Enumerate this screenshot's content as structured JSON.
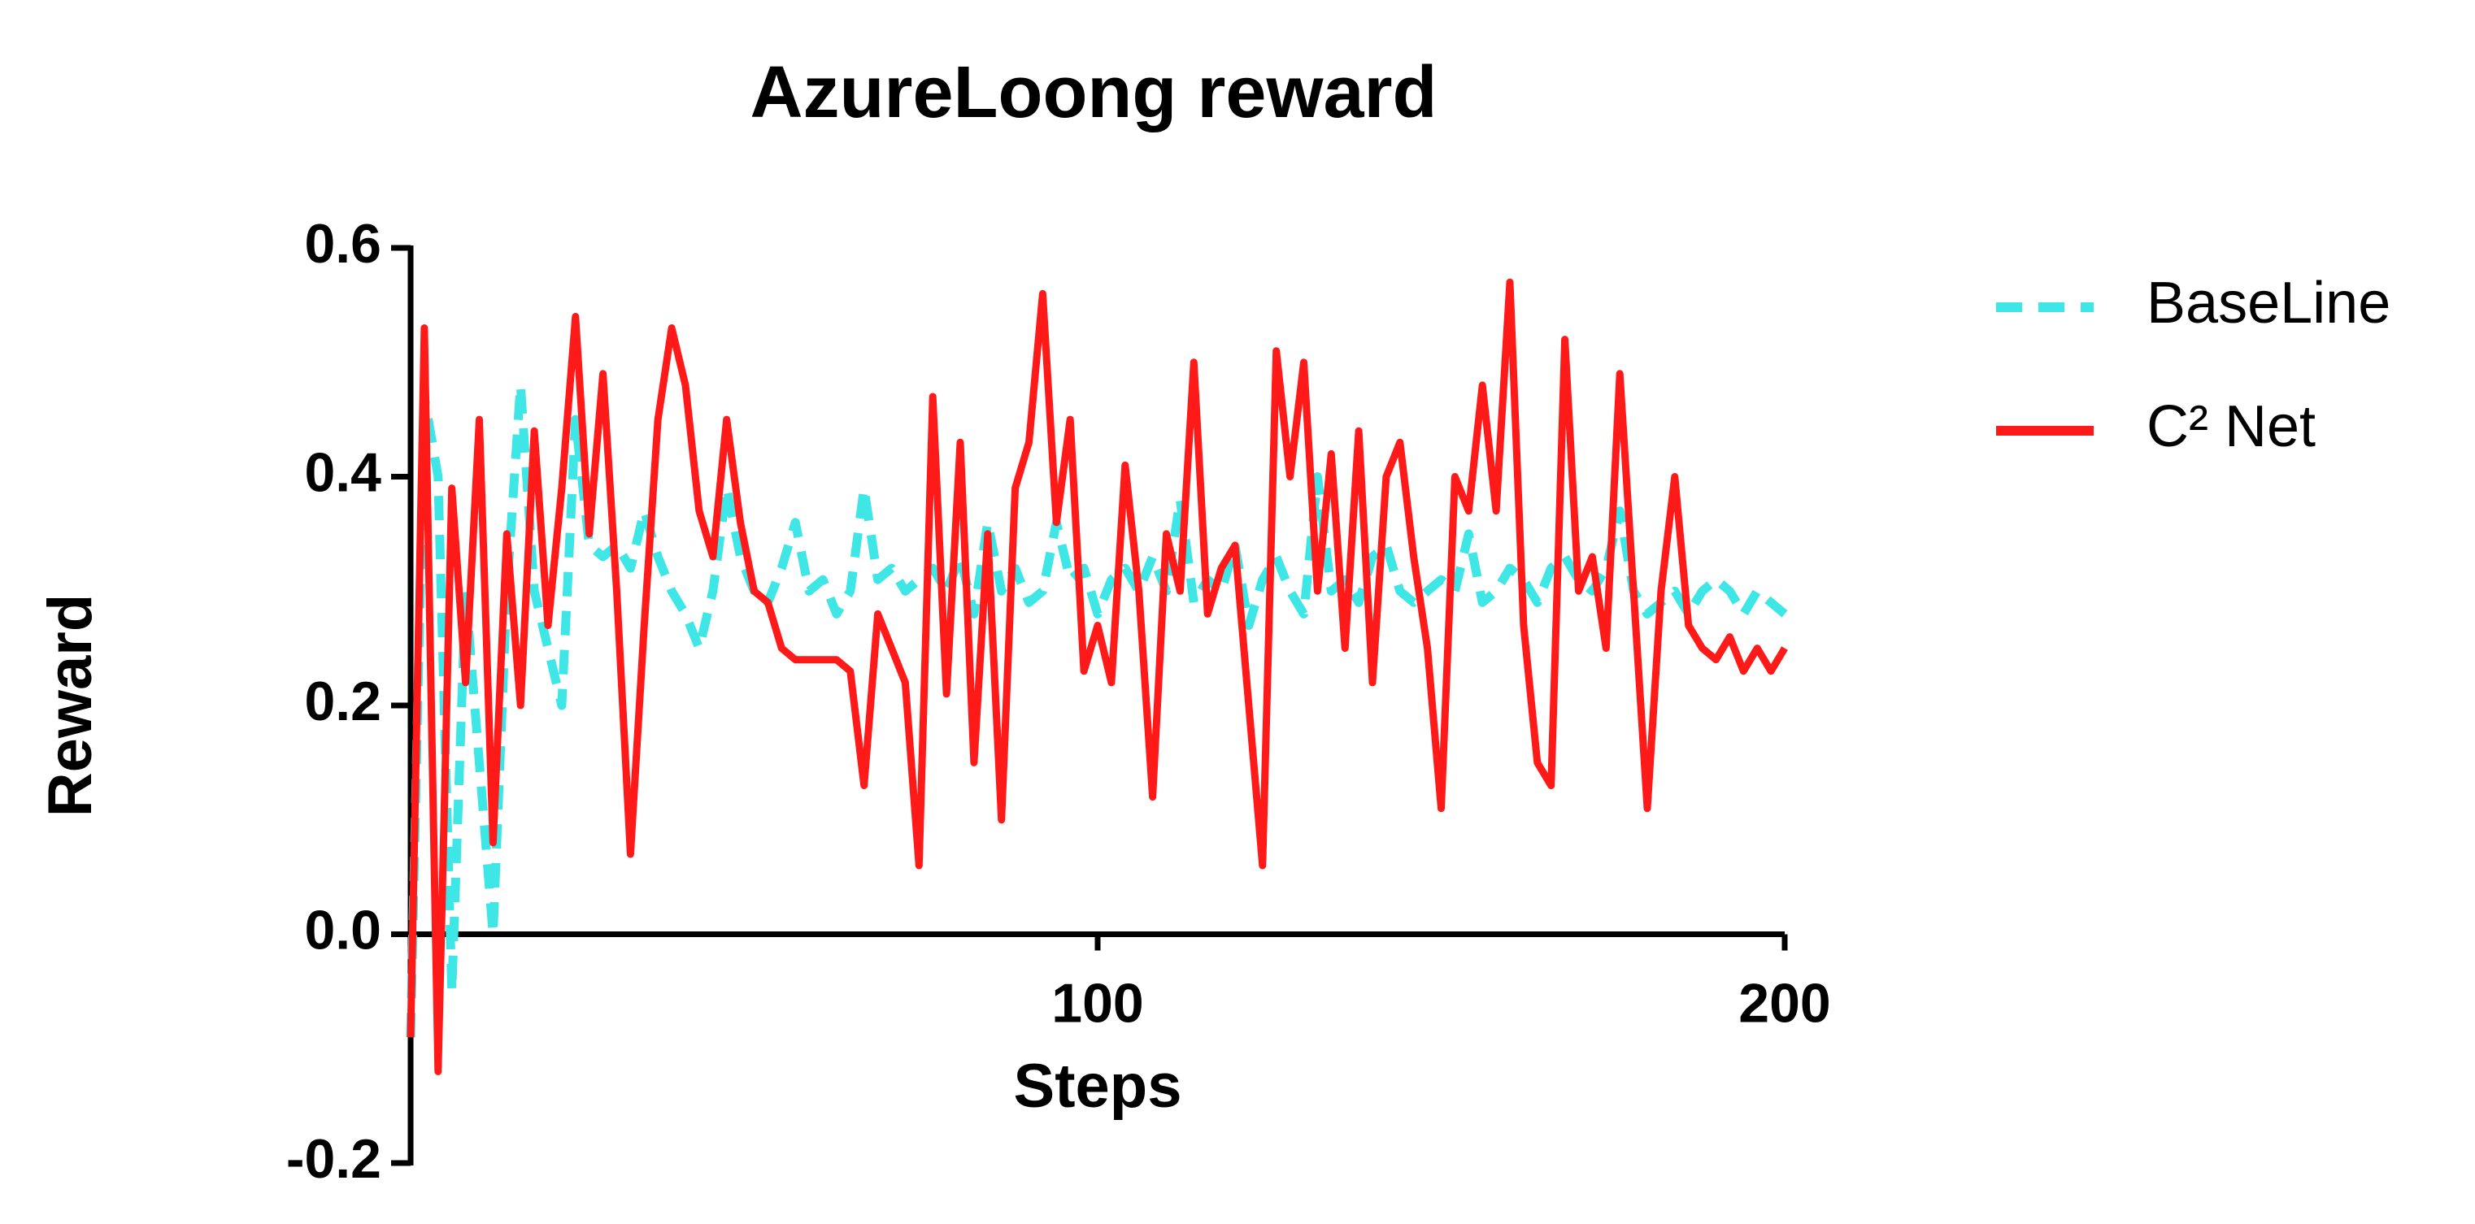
{
  "chart_data": {
    "type": "line",
    "title": "AzureLoong reward",
    "x_label": "Steps",
    "y_label": "Reward",
    "x": [
      0,
      2,
      4,
      6,
      8,
      10,
      12,
      14,
      16,
      18,
      20,
      22,
      24,
      26,
      28,
      30,
      32,
      34,
      36,
      38,
      40,
      42,
      44,
      46,
      48,
      50,
      52,
      54,
      56,
      58,
      60,
      62,
      64,
      66,
      68,
      70,
      72,
      74,
      76,
      78,
      80,
      82,
      84,
      86,
      88,
      90,
      92,
      94,
      96,
      98,
      100,
      102,
      104,
      106,
      108,
      110,
      112,
      114,
      116,
      118,
      120,
      122,
      124,
      126,
      128,
      130,
      132,
      134,
      136,
      138,
      140,
      142,
      144,
      146,
      148,
      150,
      152,
      154,
      156,
      158,
      160,
      162,
      164,
      166,
      168,
      170,
      172,
      174,
      176,
      178,
      180,
      182,
      184,
      186,
      188,
      190,
      192,
      194,
      196,
      198,
      200
    ],
    "series": [
      {
        "name": "BaseLine",
        "color": "#3ee6e6",
        "dashed": true,
        "values": [
          -0.09,
          0.47,
          0.4,
          -0.05,
          0.3,
          0.15,
          0.0,
          0.3,
          0.48,
          0.3,
          0.25,
          0.2,
          0.45,
          0.34,
          0.33,
          0.34,
          0.32,
          0.37,
          0.33,
          0.3,
          0.28,
          0.25,
          0.3,
          0.39,
          0.33,
          0.3,
          0.29,
          0.32,
          0.36,
          0.3,
          0.31,
          0.28,
          0.3,
          0.39,
          0.31,
          0.32,
          0.3,
          0.31,
          0.32,
          0.3,
          0.33,
          0.28,
          0.36,
          0.3,
          0.32,
          0.29,
          0.3,
          0.36,
          0.31,
          0.32,
          0.28,
          0.31,
          0.32,
          0.3,
          0.33,
          0.3,
          0.38,
          0.29,
          0.31,
          0.3,
          0.34,
          0.27,
          0.31,
          0.33,
          0.3,
          0.28,
          0.4,
          0.3,
          0.31,
          0.29,
          0.33,
          0.34,
          0.3,
          0.29,
          0.3,
          0.31,
          0.3,
          0.35,
          0.29,
          0.3,
          0.32,
          0.31,
          0.29,
          0.32,
          0.33,
          0.31,
          0.3,
          0.32,
          0.37,
          0.3,
          0.28,
          0.29,
          0.3,
          0.28,
          0.3,
          0.31,
          0.3,
          0.28,
          0.3,
          0.29,
          0.28
        ]
      },
      {
        "name": "C² Net",
        "color": "#ff1a1a",
        "dashed": false,
        "values": [
          -0.09,
          0.53,
          -0.12,
          0.39,
          0.22,
          0.45,
          0.08,
          0.35,
          0.2,
          0.44,
          0.27,
          0.39,
          0.54,
          0.35,
          0.49,
          0.3,
          0.07,
          0.27,
          0.45,
          0.53,
          0.48,
          0.37,
          0.33,
          0.45,
          0.36,
          0.3,
          0.29,
          0.25,
          0.24,
          0.24,
          0.24,
          0.24,
          0.23,
          0.13,
          0.28,
          0.25,
          0.22,
          0.06,
          0.47,
          0.21,
          0.43,
          0.15,
          0.35,
          0.1,
          0.39,
          0.43,
          0.56,
          0.36,
          0.45,
          0.23,
          0.27,
          0.22,
          0.41,
          0.3,
          0.12,
          0.35,
          0.3,
          0.5,
          0.28,
          0.32,
          0.34,
          0.2,
          0.06,
          0.51,
          0.4,
          0.5,
          0.3,
          0.42,
          0.25,
          0.44,
          0.22,
          0.4,
          0.43,
          0.33,
          0.25,
          0.11,
          0.4,
          0.37,
          0.48,
          0.37,
          0.57,
          0.27,
          0.15,
          0.13,
          0.52,
          0.3,
          0.33,
          0.25,
          0.49,
          0.3,
          0.11,
          0.3,
          0.4,
          0.27,
          0.25,
          0.24,
          0.26,
          0.23,
          0.25,
          0.23,
          0.25
        ]
      }
    ],
    "xlim": [
      0,
      200
    ],
    "xticks": [
      100,
      200
    ],
    "ylim": [
      -0.2,
      0.6
    ],
    "yticks": [
      -0.2,
      {
        "value": 0,
        "label": "0.0"
      },
      0.2,
      0.4,
      0.6
    ],
    "legend": "right"
  }
}
